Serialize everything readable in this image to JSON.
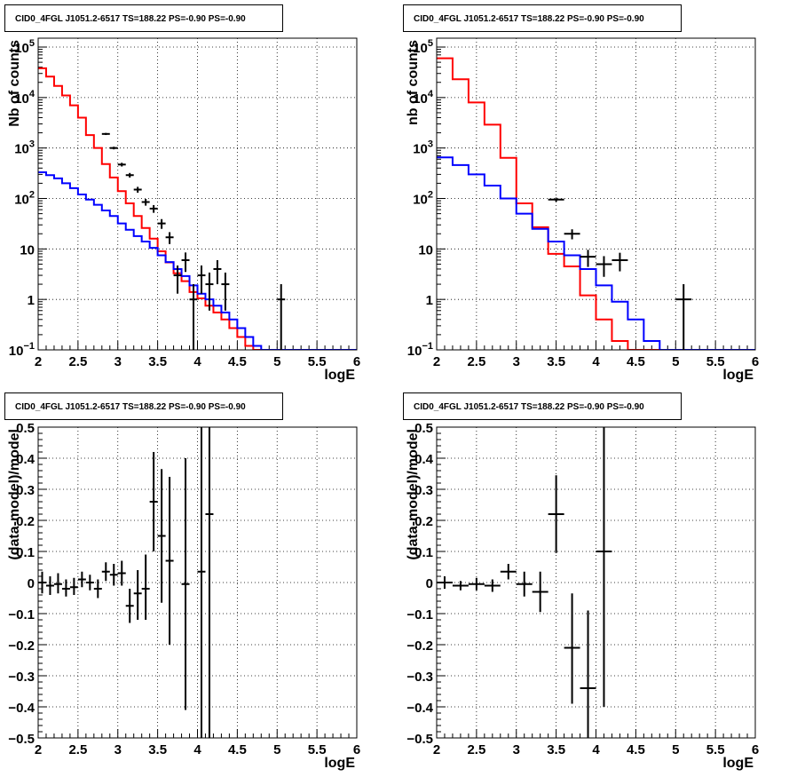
{
  "colors": {
    "frame": "#000000",
    "grid": "#000000",
    "model": "#ff0000",
    "background_model": "#0000ff",
    "data": "#000000"
  },
  "chart_data": [
    {
      "type": "line",
      "title": "CID0_4FGL J1051.2-6517 TS=188.22 PS=-0.90 PS=-0.90",
      "xlabel": "logE",
      "ylabel": "Nb of counts",
      "xlim": [
        2,
        6
      ],
      "ylim": [
        0.1,
        150000
      ],
      "yscale": "log",
      "grid": true,
      "xticks": [
        "2",
        "2.5",
        "3",
        "3.5",
        "4",
        "4.5",
        "5",
        "5.5",
        "6"
      ],
      "yticks": [
        {
          "v": 0.1,
          "base": "10",
          "exp": "−1"
        },
        {
          "v": 1,
          "label": "1"
        },
        {
          "v": 10,
          "label": "10"
        },
        {
          "v": 100,
          "base": "10",
          "exp": "2"
        },
        {
          "v": 1000,
          "base": "10",
          "exp": "3"
        },
        {
          "v": 10000,
          "base": "10",
          "exp": "4"
        },
        {
          "v": 100000,
          "base": "10",
          "exp": "5"
        }
      ],
      "series": [
        {
          "role": "model",
          "style": "step",
          "x0": 2,
          "dx": 0.1,
          "values": [
            38000,
            26000,
            17000,
            11000,
            7000,
            4000,
            1800,
            1000,
            480,
            260,
            140,
            80,
            45,
            26,
            16,
            9,
            5.4,
            3.3,
            2.3,
            1.4,
            1.05,
            0.75,
            0.55,
            0.4,
            0.27,
            0.18,
            0.12,
            0.1,
            0.1,
            0.1,
            0.1,
            0.1,
            0.1,
            0.1,
            0.1,
            0.1,
            0.1,
            0.1,
            0.1,
            0.1
          ]
        },
        {
          "role": "background_model",
          "style": "step",
          "x0": 2,
          "dx": 0.1,
          "values": [
            330,
            290,
            250,
            200,
            160,
            120,
            95,
            75,
            58,
            45,
            32,
            24,
            18,
            14,
            10.5,
            7.5,
            5.5,
            4,
            2.9,
            1.9,
            1.3,
            1.0,
            0.75,
            0.55,
            0.4,
            0.27,
            0.18,
            0.12,
            0.1,
            0.1,
            0.1,
            0.1,
            0.1,
            0.1,
            0.1,
            0.1,
            0.1,
            0.1,
            0.1,
            0.1
          ]
        },
        {
          "role": "data",
          "style": "errorbar",
          "xerr": 0.05,
          "points": [
            {
              "x": 2.85,
              "y": 1900,
              "lo": 1810,
              "hi": 1990
            },
            {
              "x": 2.95,
              "y": 1000,
              "lo": 940,
              "hi": 1060
            },
            {
              "x": 3.05,
              "y": 470,
              "lo": 430,
              "hi": 510
            },
            {
              "x": 3.15,
              "y": 290,
              "lo": 260,
              "hi": 320
            },
            {
              "x": 3.25,
              "y": 150,
              "lo": 130,
              "hi": 170
            },
            {
              "x": 3.35,
              "y": 85,
              "lo": 72,
              "hi": 98
            },
            {
              "x": 3.45,
              "y": 63,
              "lo": 52,
              "hi": 74
            },
            {
              "x": 3.55,
              "y": 32,
              "lo": 25,
              "hi": 39
            },
            {
              "x": 3.65,
              "y": 17,
              "lo": 12.5,
              "hi": 21.5
            },
            {
              "x": 3.75,
              "y": 3,
              "lo": 1.3,
              "hi": 4.7
            },
            {
              "x": 3.85,
              "y": 6,
              "lo": 3.5,
              "hi": 8.5
            },
            {
              "x": 3.95,
              "y": 1,
              "lo": 0.05,
              "hi": 2
            },
            {
              "x": 4.05,
              "y": 3,
              "lo": 1.3,
              "hi": 4.7
            },
            {
              "x": 4.15,
              "y": 2,
              "lo": 0.6,
              "hi": 3.4
            },
            {
              "x": 4.25,
              "y": 4,
              "lo": 2,
              "hi": 6
            },
            {
              "x": 4.35,
              "y": 2,
              "lo": 0.6,
              "hi": 3.4
            },
            {
              "x": 5.05,
              "y": 1,
              "lo": 0.05,
              "hi": 2
            }
          ]
        }
      ]
    },
    {
      "type": "line",
      "title": "CID0_4FGL J1051.2-6517 TS=188.22 PS=-0.90 PS=-0.90",
      "xlabel": "logE",
      "ylabel": "nb of counts",
      "xlim": [
        2,
        6
      ],
      "ylim": [
        0.1,
        150000
      ],
      "yscale": "log",
      "grid": true,
      "xticks": [
        "2",
        "2.5",
        "3",
        "3.5",
        "4",
        "4.5",
        "5",
        "5.5",
        "6"
      ],
      "yticks": [
        {
          "v": 0.1,
          "base": "10",
          "exp": "−1"
        },
        {
          "v": 1,
          "label": "1"
        },
        {
          "v": 10,
          "label": "10"
        },
        {
          "v": 100,
          "base": "10",
          "exp": "2"
        },
        {
          "v": 1000,
          "base": "10",
          "exp": "3"
        },
        {
          "v": 10000,
          "base": "10",
          "exp": "4"
        },
        {
          "v": 100000,
          "base": "10",
          "exp": "5"
        }
      ],
      "series": [
        {
          "role": "model",
          "style": "step",
          "x0": 2,
          "dx": 0.2,
          "values": [
            60000,
            23000,
            8000,
            2900,
            640,
            80,
            27,
            8,
            4.5,
            1.2,
            0.4,
            0.15,
            0.1,
            0.1,
            0.1,
            0.1,
            0.1,
            0.1,
            0.1,
            0.1
          ]
        },
        {
          "role": "background_model",
          "style": "step",
          "x0": 2,
          "dx": 0.2,
          "values": [
            650,
            460,
            300,
            180,
            100,
            50,
            25,
            14,
            7.5,
            4,
            1.9,
            0.9,
            0.4,
            0.15,
            0.1,
            0.1,
            0.1,
            0.1,
            0.1,
            0.1
          ]
        },
        {
          "role": "data",
          "style": "errorbar",
          "xerr": 0.1,
          "points": [
            {
              "x": 3.5,
              "y": 95,
              "lo": 86,
              "hi": 104
            },
            {
              "x": 3.7,
              "y": 20,
              "lo": 15.5,
              "hi": 24.5
            },
            {
              "x": 3.9,
              "y": 7,
              "lo": 4.4,
              "hi": 9.6
            },
            {
              "x": 4.1,
              "y": 5,
              "lo": 2.8,
              "hi": 7.2
            },
            {
              "x": 4.3,
              "y": 6,
              "lo": 3.6,
              "hi": 8.4
            },
            {
              "x": 5.1,
              "y": 1,
              "lo": 0.05,
              "hi": 2
            }
          ]
        }
      ]
    },
    {
      "type": "scatter",
      "title": "CID0_4FGL J1051.2-6517 TS=188.22 PS=-0.90 PS=-0.90",
      "xlabel": "logE",
      "ylabel": "(data-model)/model",
      "xlim": [
        2,
        6
      ],
      "ylim": [
        -0.5,
        0.5
      ],
      "yscale": "linear",
      "grid": true,
      "xticks": [
        "2",
        "2.5",
        "3",
        "3.5",
        "4",
        "4.5",
        "5",
        "5.5",
        "6"
      ],
      "yticks": [
        {
          "v": -0.5,
          "label": "−0.5"
        },
        {
          "v": -0.4,
          "label": "−0.4"
        },
        {
          "v": -0.3,
          "label": "−0.3"
        },
        {
          "v": -0.2,
          "label": "−0.2"
        },
        {
          "v": -0.1,
          "label": "−0.1"
        },
        {
          "v": 0,
          "label": "0"
        },
        {
          "v": 0.1,
          "label": "0.1"
        },
        {
          "v": 0.2,
          "label": "0.2"
        },
        {
          "v": 0.3,
          "label": "0.3"
        },
        {
          "v": 0.4,
          "label": "0.4"
        },
        {
          "v": 0.5,
          "label": "0.5"
        }
      ],
      "series": [
        {
          "role": "data",
          "style": "errorbar",
          "xerr": 0.05,
          "points": [
            {
              "x": 2.05,
              "y": 0,
              "lo": -0.035,
              "hi": 0.035
            },
            {
              "x": 2.15,
              "y": -0.01,
              "lo": -0.04,
              "hi": 0.02
            },
            {
              "x": 2.25,
              "y": -0.005,
              "lo": -0.035,
              "hi": 0.03
            },
            {
              "x": 2.35,
              "y": -0.02,
              "lo": -0.045,
              "hi": 0.01
            },
            {
              "x": 2.45,
              "y": -0.015,
              "lo": -0.04,
              "hi": 0.015
            },
            {
              "x": 2.55,
              "y": 0.01,
              "lo": -0.015,
              "hi": 0.035
            },
            {
              "x": 2.65,
              "y": 0,
              "lo": -0.025,
              "hi": 0.025
            },
            {
              "x": 2.75,
              "y": -0.02,
              "lo": -0.05,
              "hi": 0.01
            },
            {
              "x": 2.85,
              "y": 0.035,
              "lo": 0.005,
              "hi": 0.065
            },
            {
              "x": 2.95,
              "y": 0.025,
              "lo": -0.01,
              "hi": 0.06
            },
            {
              "x": 3.05,
              "y": 0.03,
              "lo": -0.01,
              "hi": 0.07
            },
            {
              "x": 3.15,
              "y": -0.075,
              "lo": -0.13,
              "hi": -0.02
            },
            {
              "x": 3.25,
              "y": -0.035,
              "lo": -0.12,
              "hi": 0.04
            },
            {
              "x": 3.35,
              "y": -0.02,
              "lo": -0.12,
              "hi": 0.09
            },
            {
              "x": 3.45,
              "y": 0.26,
              "lo": 0.1,
              "hi": 0.42
            },
            {
              "x": 3.55,
              "y": 0.15,
              "lo": -0.065,
              "hi": 0.365
            },
            {
              "x": 3.65,
              "y": 0.07,
              "lo": -0.2,
              "hi": 0.34
            },
            {
              "x": 3.85,
              "y": -0.005,
              "lo": -0.41,
              "hi": 0.4
            },
            {
              "x": 4.05,
              "y": 0.035,
              "lo": -0.5,
              "hi": 0.5
            },
            {
              "x": 4.15,
              "y": 0.22,
              "lo": -0.5,
              "hi": 0.5
            }
          ]
        }
      ]
    },
    {
      "type": "scatter",
      "title": "CID0_4FGL J1051.2-6517 TS=188.22 PS=-0.90 PS=-0.90",
      "xlabel": "logE",
      "ylabel": "(data-model)/model",
      "xlim": [
        2,
        6
      ],
      "ylim": [
        -0.5,
        0.5
      ],
      "yscale": "linear",
      "grid": true,
      "xticks": [
        "2",
        "2.5",
        "3",
        "3.5",
        "4",
        "4.5",
        "5",
        "5.5",
        "6"
      ],
      "yticks": [
        {
          "v": -0.5,
          "label": "−0.5"
        },
        {
          "v": -0.4,
          "label": "−0.4"
        },
        {
          "v": -0.3,
          "label": "−0.3"
        },
        {
          "v": -0.2,
          "label": "−0.2"
        },
        {
          "v": -0.1,
          "label": "−0.1"
        },
        {
          "v": 0,
          "label": "0"
        },
        {
          "v": 0.1,
          "label": "0.1"
        },
        {
          "v": 0.2,
          "label": "0.2"
        },
        {
          "v": 0.3,
          "label": "0.3"
        },
        {
          "v": 0.4,
          "label": "0.4"
        },
        {
          "v": 0.5,
          "label": "0.5"
        }
      ],
      "series": [
        {
          "role": "data",
          "style": "errorbar",
          "xerr": 0.1,
          "points": [
            {
              "x": 2.1,
              "y": 0,
              "lo": -0.02,
              "hi": 0.02
            },
            {
              "x": 2.3,
              "y": -0.01,
              "lo": -0.025,
              "hi": 0.005
            },
            {
              "x": 2.5,
              "y": -0.005,
              "lo": -0.025,
              "hi": 0.015
            },
            {
              "x": 2.7,
              "y": -0.01,
              "lo": -0.03,
              "hi": 0.01
            },
            {
              "x": 2.9,
              "y": 0.035,
              "lo": 0.01,
              "hi": 0.06
            },
            {
              "x": 3.1,
              "y": -0.005,
              "lo": -0.045,
              "hi": 0.035
            },
            {
              "x": 3.3,
              "y": -0.03,
              "lo": -0.095,
              "hi": 0.035
            },
            {
              "x": 3.5,
              "y": 0.22,
              "lo": 0.095,
              "hi": 0.345
            },
            {
              "x": 3.7,
              "y": -0.21,
              "lo": -0.39,
              "hi": -0.035
            },
            {
              "x": 3.9,
              "y": -0.34,
              "lo": -0.5,
              "hi": -0.09
            },
            {
              "x": 4.1,
              "y": 0.1,
              "lo": -0.4,
              "hi": 0.5
            }
          ]
        }
      ]
    }
  ]
}
